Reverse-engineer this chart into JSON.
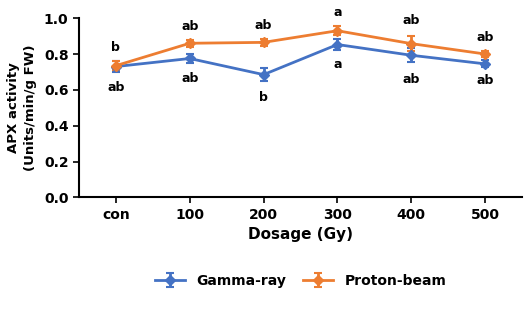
{
  "x_labels": [
    "con",
    "100",
    "200",
    "300",
    "400",
    "500"
  ],
  "x_positions": [
    0,
    1,
    2,
    3,
    4,
    5
  ],
  "gamma_values": [
    0.73,
    0.775,
    0.685,
    0.853,
    0.793,
    0.745
  ],
  "gamma_errors": [
    0.03,
    0.025,
    0.038,
    0.03,
    0.038,
    0.02
  ],
  "proton_values": [
    0.735,
    0.86,
    0.865,
    0.93,
    0.858,
    0.8
  ],
  "proton_errors": [
    0.025,
    0.02,
    0.018,
    0.025,
    0.04,
    0.018
  ],
  "gamma_color": "#4472C4",
  "proton_color": "#ED7D31",
  "gamma_label": "Gamma-ray",
  "proton_label": "Proton-beam",
  "xlabel": "Dosage (Gy)",
  "ylabel_line1": "APX activity",
  "ylabel_line2": "(Units/min/g FW)",
  "ylim": [
    0.0,
    1.0
  ],
  "yticks": [
    0.0,
    0.2,
    0.4,
    0.6,
    0.8,
    1.0
  ],
  "gamma_annotations": [
    "ab",
    "ab",
    "b",
    "a",
    "ab",
    "ab"
  ],
  "proton_annotations": [
    "b",
    "ab",
    "ab",
    "a",
    "ab",
    "ab"
  ],
  "gamma_annot_offsets": [
    0.048,
    0.048,
    0.055,
    0.045,
    0.06,
    0.038
  ],
  "proton_annot_offsets": [
    0.038,
    0.038,
    0.038,
    0.038,
    0.052,
    0.038
  ],
  "background_color": "#ffffff",
  "figsize": [
    5.29,
    3.27
  ],
  "dpi": 100
}
